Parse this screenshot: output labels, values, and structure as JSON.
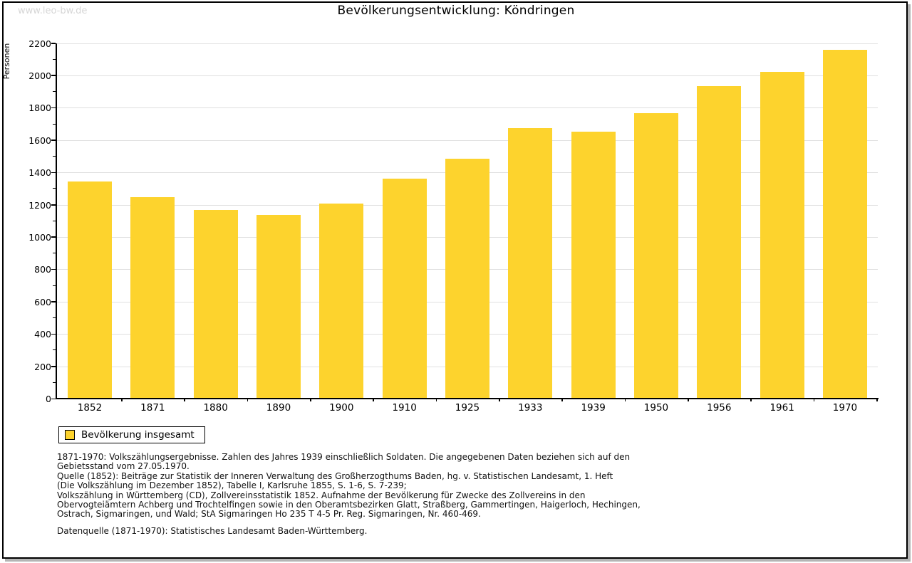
{
  "watermark": "www.leo-bw.de",
  "title": "Bevölkerungsentwicklung: Köndringen",
  "y_axis": {
    "title": "Personen"
  },
  "legend": {
    "label": "Bevölkerung insgesamt",
    "swatch_color": "#FDD32D"
  },
  "chart_data": {
    "type": "bar",
    "title": "Bevölkerungsentwicklung: Köndringen",
    "xlabel": "",
    "ylabel": "Personen",
    "categories": [
      "1852",
      "1871",
      "1880",
      "1890",
      "1900",
      "1910",
      "1925",
      "1933",
      "1939",
      "1950",
      "1956",
      "1961",
      "1970"
    ],
    "values": [
      1342,
      1245,
      1165,
      1138,
      1206,
      1360,
      1486,
      1672,
      1650,
      1765,
      1935,
      2020,
      2160
    ],
    "series_name": "Bevölkerung insgesamt",
    "ylim": [
      0,
      2200
    ],
    "ytick_step": 200,
    "ytick_minor_step": 100,
    "grid": "horizontal",
    "legend_position": "bottom-left",
    "bar_color": "#FDD32D",
    "grid_color": "#e0e0e0",
    "axis_color": "#000000"
  },
  "notes": {
    "lines": [
      "1871-1970: Volkszählungsergebnisse. Zahlen des Jahres 1939 einschließlich Soldaten. Die angegebenen Daten beziehen sich auf den",
      "Gebietsstand vom 27.05.1970.",
      "Quelle (1852): Beiträge zur Statistik der Inneren Verwaltung des Großherzogthums Baden, hg. v. Statistischen Landesamt, 1. Heft",
      "(Die Volkszählung im Dezember 1852), Tabelle I, Karlsruhe 1855, S. 1-6, S. 7-239;",
      "Volkszählung in Württemberg (CD), Zollvereinsstatistik 1852. Aufnahme der Bevölkerung für Zwecke des Zollvereins in den",
      "Obervogteiämtern Achberg und Trochtelfingen sowie in den Oberamtsbezirken Glatt, Straßberg, Gammertingen, Haigerloch, Hechingen,",
      "Ostrach, Sigmaringen, und Wald; StA Sigmaringen Ho 235 T 4-5 Pr. Reg. Sigmaringen, Nr. 460-469."
    ],
    "datasource": "Datenquelle (1871-1970): Statistisches Landesamt Baden-Württemberg."
  }
}
